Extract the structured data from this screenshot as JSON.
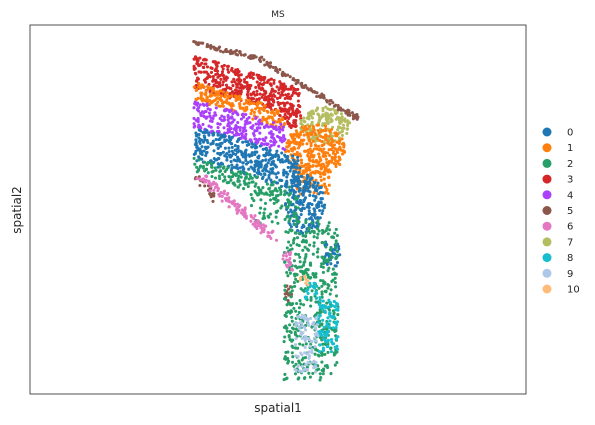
{
  "chart_data": {
    "type": "scatter",
    "title": "MS",
    "xlabel": "spatial1",
    "ylabel": "spatial2",
    "xticks": [],
    "yticks": [],
    "grid": false,
    "legend_position": "right",
    "series": [
      {
        "label": "0",
        "color": "#1f77b4"
      },
      {
        "label": "1",
        "color": "#ff7f0e"
      },
      {
        "label": "2",
        "color": "#279e68"
      },
      {
        "label": "3",
        "color": "#d62728"
      },
      {
        "label": "4",
        "color": "#aa40fc"
      },
      {
        "label": "5",
        "color": "#8c564b"
      },
      {
        "label": "6",
        "color": "#e377c2"
      },
      {
        "label": "7",
        "color": "#b5bd61"
      },
      {
        "label": "8",
        "color": "#17becf"
      },
      {
        "label": "9",
        "color": "#aec7e8"
      },
      {
        "label": "10",
        "color": "#ffbb78"
      }
    ]
  }
}
